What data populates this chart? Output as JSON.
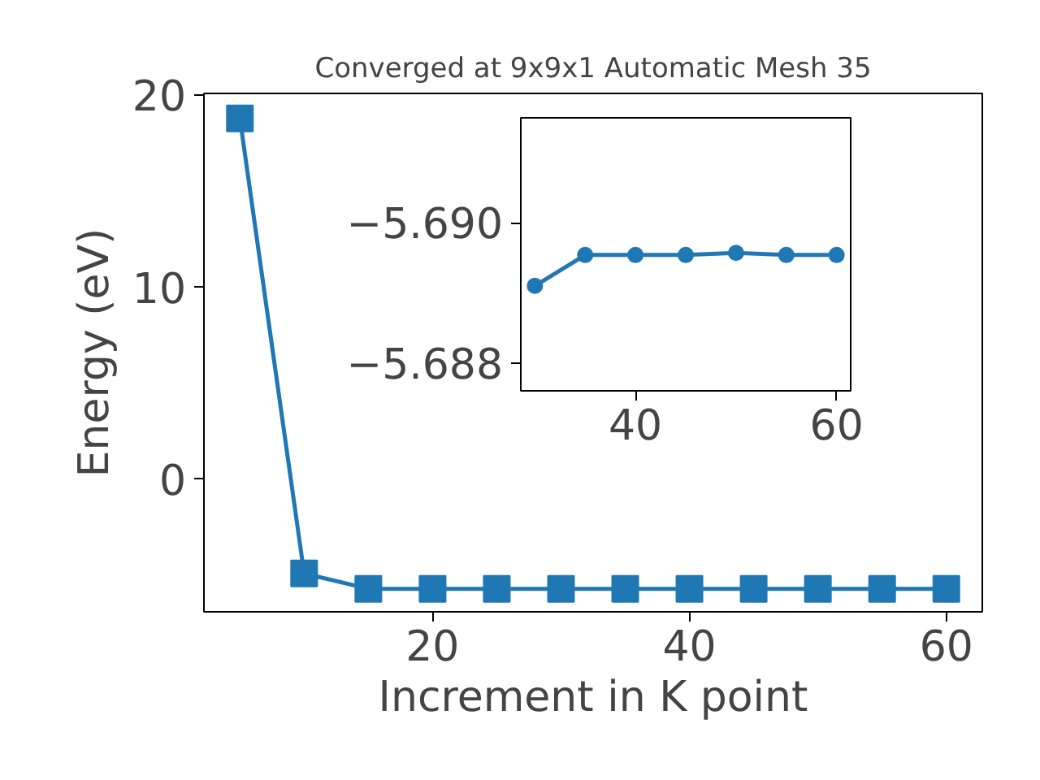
{
  "chart_data": [
    {
      "type": "line",
      "title": "Converged at 9x9x1 Automatic Mesh 35",
      "xlabel": "Increment in K point",
      "ylabel": "Energy (eV)",
      "x": [
        5,
        10,
        15,
        20,
        25,
        30,
        35,
        40,
        45,
        50,
        55,
        60
      ],
      "series": [
        {
          "color": "#1f77b4",
          "values": [
            18.8,
            -4.9,
            -5.7,
            -5.7,
            -5.7,
            -5.7,
            -5.7,
            -5.7,
            -5.7,
            -5.7,
            -5.7,
            -5.7
          ]
        }
      ],
      "xlim": [
        2.2,
        62.8
      ],
      "ylim": [
        -6.9,
        20.1
      ],
      "xticks": [
        20,
        40,
        60
      ],
      "yticks": [
        0,
        10,
        20
      ],
      "marker": "square",
      "line_style": "solid",
      "grid": false
    },
    {
      "type": "line",
      "x": [
        30,
        35,
        40,
        45,
        50,
        55,
        60
      ],
      "series": [
        {
          "color": "#1f77b4",
          "values": [
            -5.6891,
            -5.68954,
            -5.68954,
            -5.68954,
            -5.68957,
            -5.68954,
            -5.68954
          ]
        }
      ],
      "xlim": [
        28.6,
        61.4
      ],
      "ylim": [
        -5.6876,
        -5.6915
      ],
      "xticks": [
        40,
        60
      ],
      "yticks": [
        {
          "value": -5.69,
          "label": "−5.690"
        },
        {
          "value": -5.688,
          "label": "−5.688"
        }
      ],
      "marker": "circle",
      "line_style": "solid",
      "grid": false
    }
  ]
}
